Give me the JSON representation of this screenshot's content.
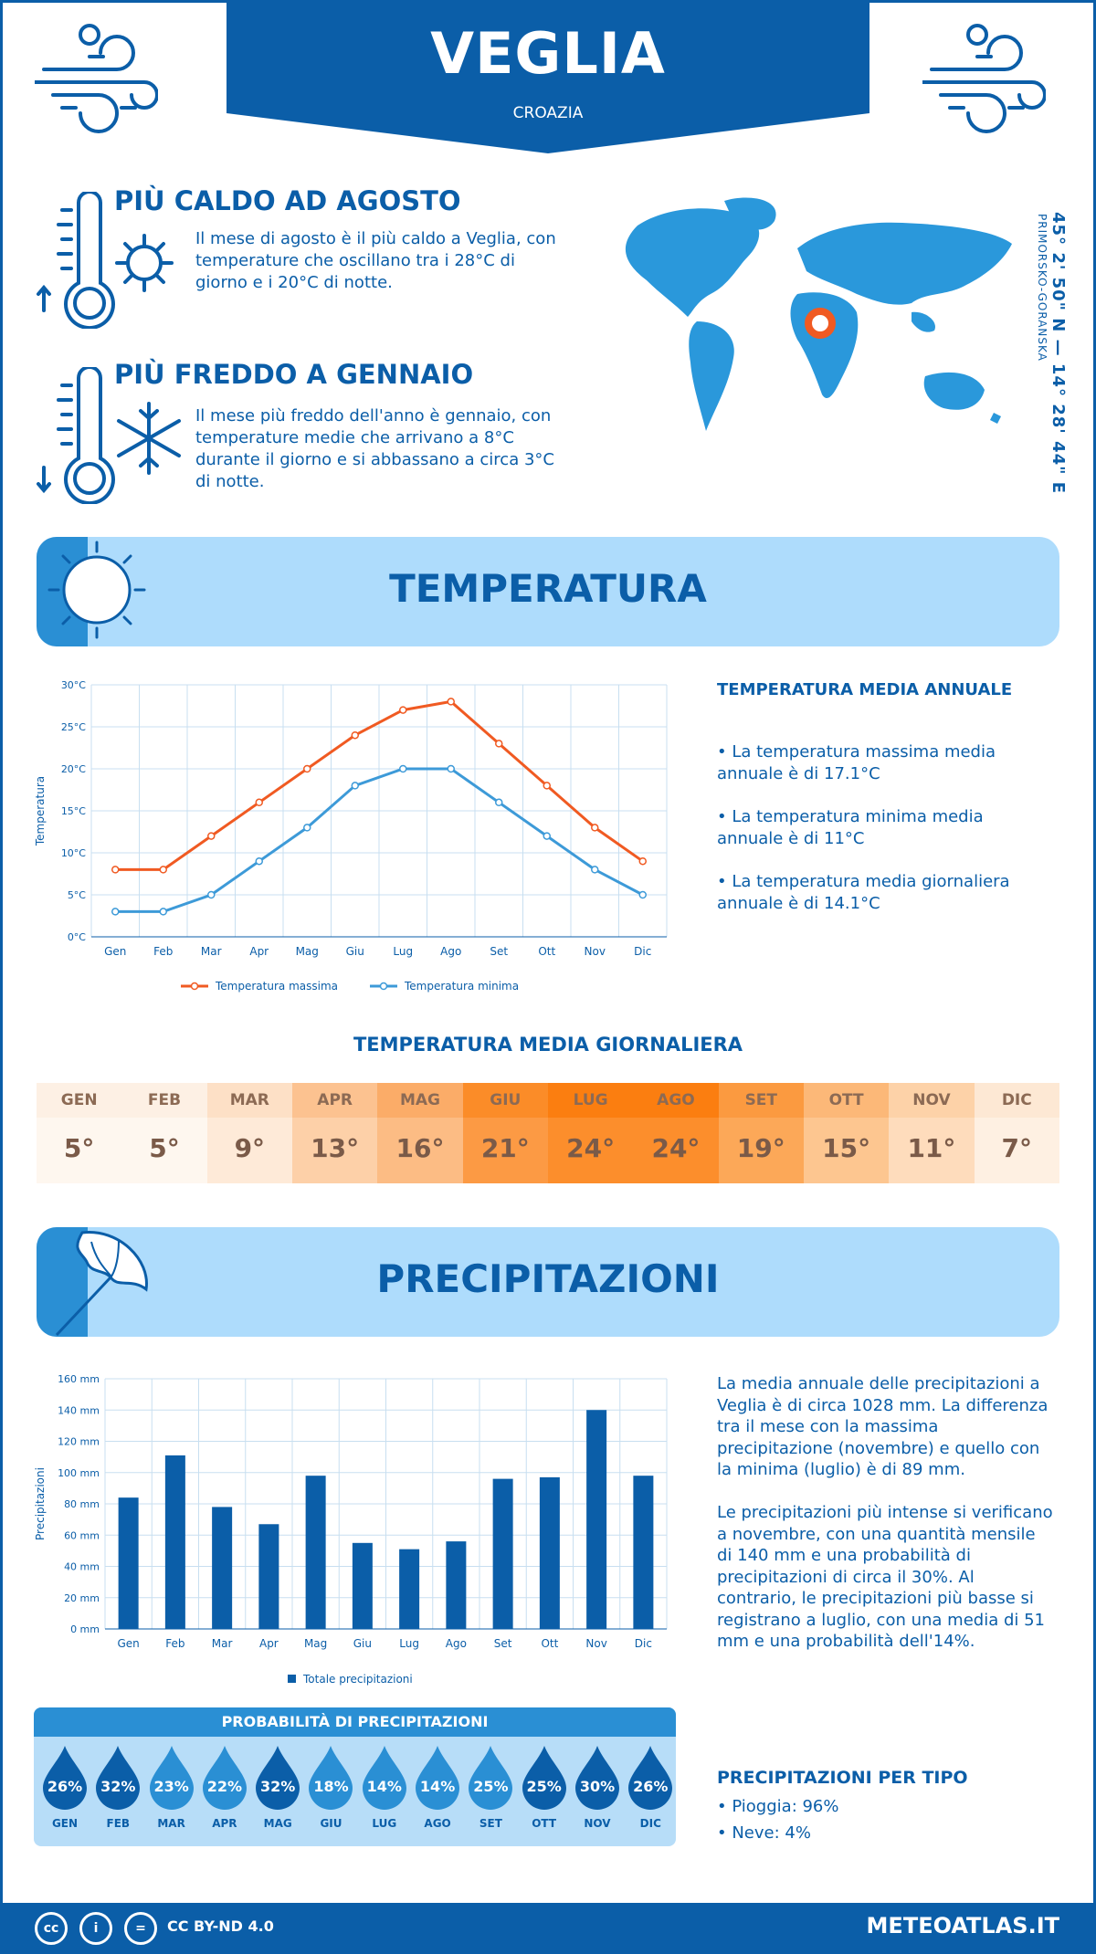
{
  "header": {
    "title": "VEGLIA",
    "subtitle": "CROAZIA"
  },
  "hot": {
    "title": "PIÙ CALDO AD AGOSTO",
    "text": "Il mese di agosto è il più caldo a Veglia, con temperature che oscillano tra i 28°C di giorno e i 20°C di notte."
  },
  "cold": {
    "title": "PIÙ FREDDO A GENNAIO",
    "text": "Il mese più freddo dell'anno è gennaio, con temperature medie che arrivano a 8°C durante il giorno e si abbassano a circa 3°C di notte."
  },
  "location": {
    "coords": "45° 2' 50\" N — 14° 28' 44\" E",
    "region": "PRIMORSKO-GORANSKA"
  },
  "temperature_section": {
    "title": "TEMPERATURA",
    "side_title": "TEMPERATURA MEDIA ANNUALE",
    "bullets": [
      "• La temperatura massima media annuale è di 17.1°C",
      "• La temperatura minima media annuale è di 11°C",
      "• La temperatura media giornaliera annuale è di 14.1°C"
    ]
  },
  "daily": {
    "title": "TEMPERATURA MEDIA GIORNALIERA",
    "months": [
      "GEN",
      "FEB",
      "MAR",
      "APR",
      "MAG",
      "GIU",
      "LUG",
      "AGO",
      "SET",
      "OTT",
      "NOV",
      "DIC"
    ],
    "values": [
      "5°",
      "5°",
      "9°",
      "13°",
      "16°",
      "21°",
      "24°",
      "24°",
      "19°",
      "15°",
      "11°",
      "7°"
    ],
    "colors_top": [
      "#fdf0e4",
      "#fdf0e4",
      "#fde0c6",
      "#fcc290",
      "#fbac68",
      "#fb8c28",
      "#fb7e10",
      "#fb7e10",
      "#fb9a40",
      "#fcb878",
      "#fdd2a8",
      "#fde8d4"
    ],
    "colors_bottom": [
      "#fef7ef",
      "#fef7ef",
      "#feead8",
      "#fdd0a8",
      "#fcbc84",
      "#fc9a44",
      "#fc8e2c",
      "#fc8e2c",
      "#fca858",
      "#fdc690",
      "#fedcbc",
      "#fef0e2"
    ]
  },
  "precip_section": {
    "title": "PRECIPITAZIONI",
    "paragraph1": "La media annuale delle precipitazioni a Veglia è di circa 1028 mm. La differenza tra il mese con la massima precipitazione (novembre) e quello con la minima (luglio) è di 89 mm.",
    "paragraph2": "Le precipitazioni più intense si verificano a novembre, con una quantità mensile di 140 mm e una probabilità di precipitazioni di circa il 30%. Al contrario, le precipitazioni più basse si registrano a luglio, con una media di 51 mm e una probabilità dell'14%."
  },
  "probability": {
    "title": "PROBABILITÀ DI PRECIPITAZIONI",
    "months": [
      "GEN",
      "FEB",
      "MAR",
      "APR",
      "MAG",
      "GIU",
      "LUG",
      "AGO",
      "SET",
      "OTT",
      "NOV",
      "DIC"
    ],
    "values": [
      "26%",
      "32%",
      "23%",
      "22%",
      "32%",
      "18%",
      "14%",
      "14%",
      "25%",
      "25%",
      "30%",
      "26%"
    ],
    "drop_colors": [
      "#0b5ea8",
      "#0b5ea8",
      "#2a8fd4",
      "#2a8fd4",
      "#0b5ea8",
      "#2a8fd4",
      "#2a8fd4",
      "#2a8fd4",
      "#2a8fd4",
      "#0b5ea8",
      "#0b5ea8",
      "#0b5ea8"
    ]
  },
  "precip_type": {
    "title": "PRECIPITAZIONI PER TIPO",
    "rain": "• Pioggia: 96%",
    "snow": "• Neve: 4%"
  },
  "footer": {
    "license": "CC BY-ND 4.0",
    "site": "METEOATLAS.IT",
    "cc1": "cc",
    "cc2": "i",
    "cc3": "="
  },
  "colors": {
    "primary": "#0b5ea8",
    "accent": "#2a8fd4",
    "light": "#aedcfc",
    "max_line": "#f05a22",
    "min_line": "#3d9ad8"
  },
  "chart_data": [
    {
      "type": "line",
      "categories": [
        "Gen",
        "Feb",
        "Mar",
        "Apr",
        "Mag",
        "Giu",
        "Lug",
        "Ago",
        "Set",
        "Ott",
        "Nov",
        "Dic"
      ],
      "series": [
        {
          "name": "Temperatura massima",
          "values": [
            8,
            8,
            12,
            16,
            20,
            24,
            27,
            28,
            23,
            18,
            13,
            9
          ]
        },
        {
          "name": "Temperatura minima",
          "values": [
            3,
            3,
            5,
            9,
            13,
            18,
            20,
            20,
            16,
            12,
            8,
            5
          ]
        }
      ],
      "ylabel": "Temperatura",
      "ylim": [
        0,
        30
      ],
      "yticks": [
        "0°C",
        "5°C",
        "10°C",
        "15°C",
        "20°C",
        "25°C",
        "30°C"
      ],
      "grid": true,
      "legend": "bottom"
    },
    {
      "type": "bar",
      "categories": [
        "Gen",
        "Feb",
        "Mar",
        "Apr",
        "Mag",
        "Giu",
        "Lug",
        "Ago",
        "Set",
        "Ott",
        "Nov",
        "Dic"
      ],
      "series": [
        {
          "name": "Totale precipitazioni",
          "values": [
            84,
            111,
            78,
            67,
            98,
            55,
            51,
            56,
            96,
            97,
            140,
            98
          ]
        }
      ],
      "ylabel": "Precipitazioni",
      "ylim": [
        0,
        160
      ],
      "yticks": [
        "0 mm",
        "20 mm",
        "40 mm",
        "60 mm",
        "80 mm",
        "100 mm",
        "120 mm",
        "140 mm",
        "160 mm"
      ],
      "grid": true,
      "legend": "bottom"
    }
  ]
}
